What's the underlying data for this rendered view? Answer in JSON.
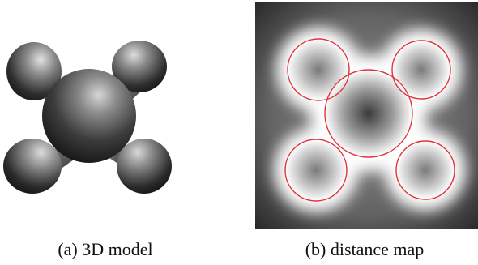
{
  "figure": {
    "panels": [
      {
        "caption": "(a) 3D model"
      },
      {
        "caption": "(b) distance map"
      }
    ]
  },
  "colors": {
    "boundary": "#e0323a",
    "background": "#ffffff",
    "map_dark": "#2a2a2a",
    "map_light": "#ffffff"
  }
}
